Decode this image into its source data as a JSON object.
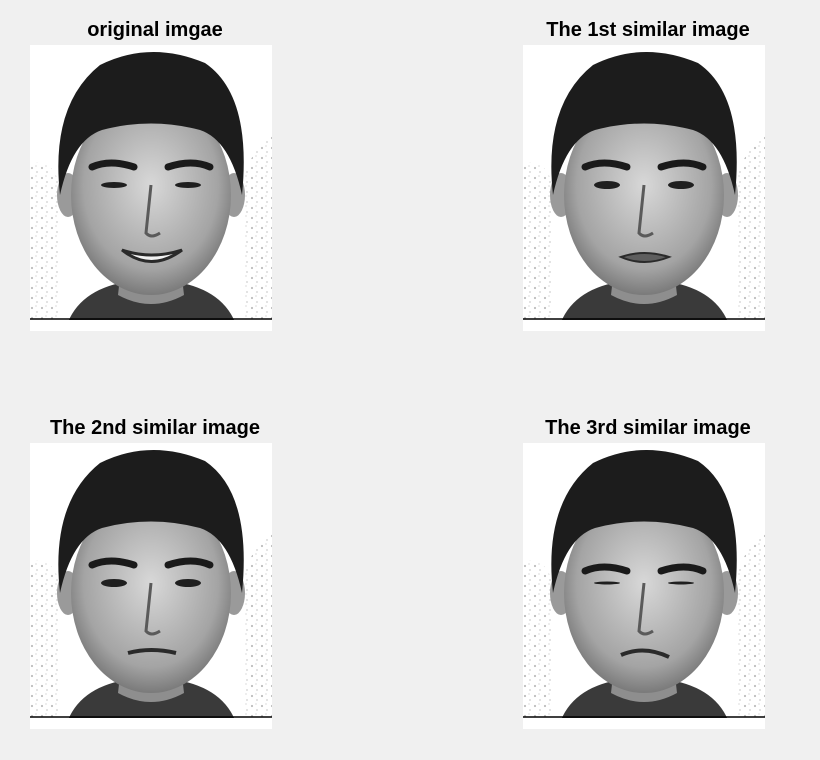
{
  "panels": [
    {
      "title": "original imgae",
      "expression": "smile"
    },
    {
      "title": "The 1st similar image",
      "expression": "pout"
    },
    {
      "title": "The 2nd similar image",
      "expression": "neutral"
    },
    {
      "title": "The 3rd similar image",
      "expression": "squint"
    }
  ]
}
